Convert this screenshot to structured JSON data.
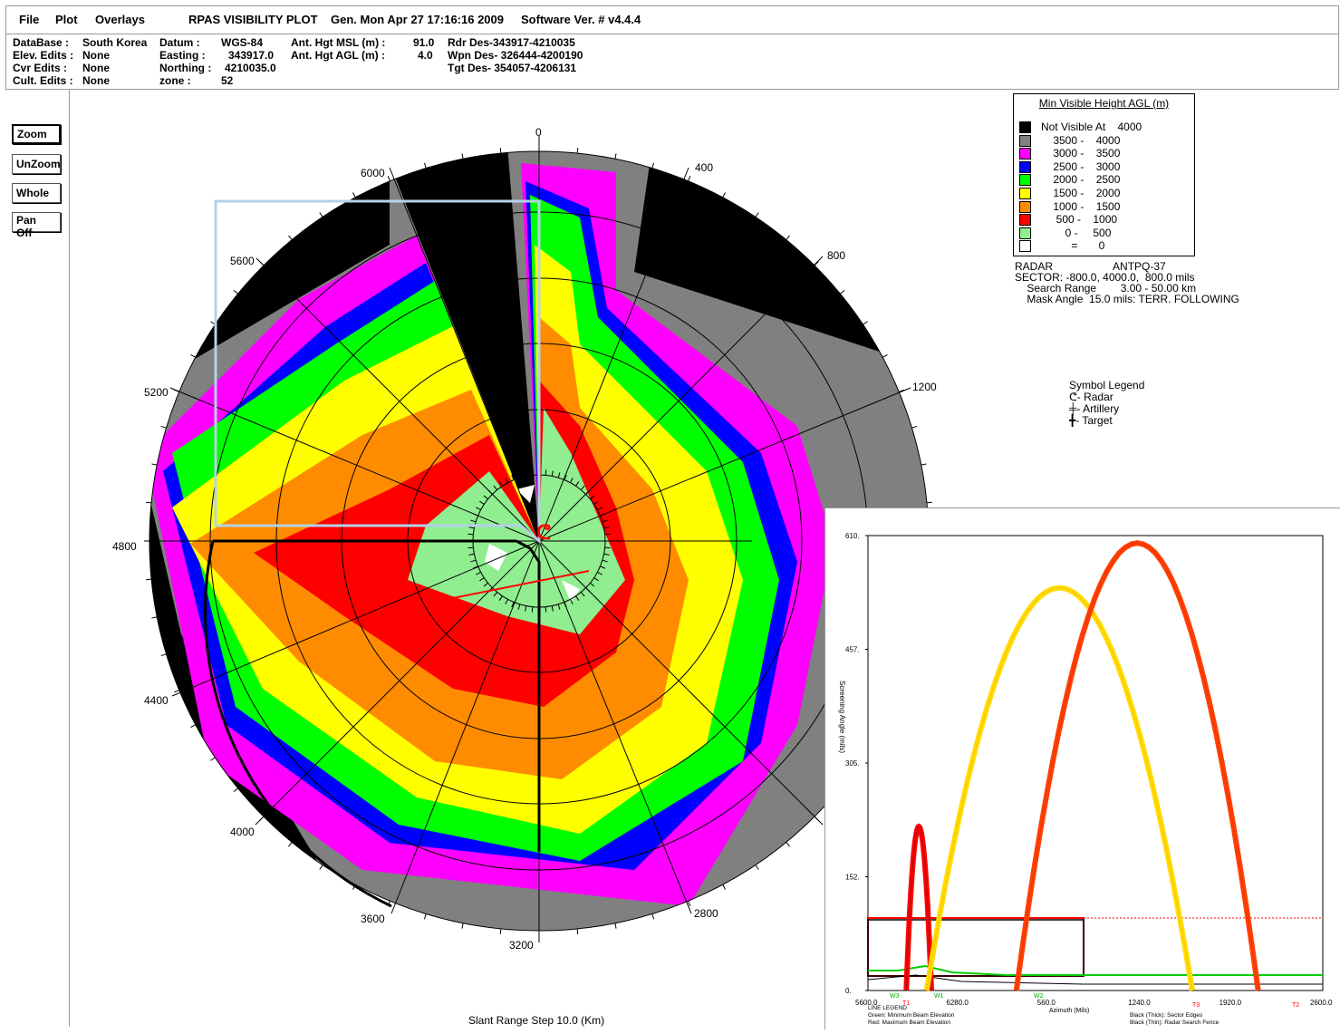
{
  "menu": {
    "file": "File",
    "plot": "Plot",
    "overlays": "Overlays",
    "title": "RPAS VISIBILITY PLOT",
    "generated": "Gen. Mon Apr 27 17:16:16 2009",
    "software": "Software Ver. # v4.4.4"
  },
  "info": {
    "database_label": "DataBase :",
    "database_value": "South Korea",
    "elev_label": "Elev. Edits :",
    "elev_value": "None",
    "cvr_label": "Cvr Edits :",
    "cvr_value": "None",
    "cult_label": "Cult. Edits :",
    "cult_value": "None",
    "datum_label": "Datum :",
    "datum_value": "WGS-84",
    "easting_label": "Easting :",
    "easting_value": "343917.0",
    "northing_label": "Northing :",
    "northing_value": "4210035.0",
    "zone_label": "zone :",
    "zone_value": "52",
    "msl_label": "Ant. Hgt MSL (m) :",
    "msl_value": "91.0",
    "agl_label": "Ant. Hgt AGL (m) :",
    "agl_value": "4.0",
    "rdr_des": "Rdr Des-343917-4210035",
    "wpn_des": "Wpn Des- 326444-4200190",
    "tgt_des": "Tgt Des- 354057-4206131"
  },
  "toolbar": {
    "zoom": "Zoom",
    "unzoom": "UnZoom",
    "whole": "Whole",
    "pan": "Pan Off"
  },
  "polar": {
    "labels": [
      "0",
      "400",
      "800",
      "1200",
      "2800",
      "3200",
      "3600",
      "4000",
      "4400",
      "4800",
      "5200",
      "5600",
      "6000"
    ]
  },
  "legend": {
    "title": "Min Visible Height AGL  (m)",
    "rows": [
      {
        "color": "#000000",
        "text": "Not Visible At    4000"
      },
      {
        "color": "#808080",
        "text": "    3500 -    4000"
      },
      {
        "color": "#ff00ff",
        "text": "    3000 -    3500"
      },
      {
        "color": "#0000ff",
        "text": "    2500 -    3000"
      },
      {
        "color": "#00ff00",
        "text": "    2000 -    2500"
      },
      {
        "color": "#ffff00",
        "text": "    1500 -    2000"
      },
      {
        "color": "#ff8c00",
        "text": "    1000 -    1500"
      },
      {
        "color": "#ff0000",
        "text": "     500 -    1000"
      },
      {
        "color": "#90ee90",
        "text": "        0 -     500"
      },
      {
        "color": "#ffffff",
        "text": "          =       0"
      }
    ]
  },
  "radar": {
    "line1": "RADAR                    ANTPQ-37",
    "line2": "SECTOR: -800.0, 4000.0,  800.0 mils",
    "line3": "    Search Range        3.00 - 50.00 km",
    "line4": "    Mask Angle  15.0 mils: TERR. FOLLOWING"
  },
  "symbols": {
    "title": "Symbol Legend",
    "radar": "- Radar",
    "artillery": "- Artillery",
    "target": "- Target"
  },
  "footer": "Slant Range Step 10.0 (Km)",
  "inset": {
    "y_ticks": [
      "610.",
      "457.",
      "305.",
      "152.",
      "0."
    ],
    "x_ticks": [
      "5600.0",
      "6280.0",
      "560.0",
      "1240.0",
      "1920.0",
      "2600.0"
    ],
    "ylabel": "Screening Angle (mils)",
    "xlabel": "Azimuth (Mils)",
    "markers_green": [
      "W3",
      "W1",
      "W2"
    ],
    "markers_red": [
      "T1",
      "T3",
      "T2"
    ],
    "line_legend": "LINE LEGEND",
    "green_desc": "Green: Minimum Beam Elevation",
    "red_desc": "Red: Maximum Beam Elevation",
    "black_thick": "Black (Thick): Sector Edges",
    "black_thin": "Black (Thin): Radar Search Fence"
  },
  "chart_data": {
    "type": "line",
    "xlabel": "Azimuth (Mils)",
    "ylabel": "Screening Angle (mils)",
    "x_ticks": [
      "5600.0",
      "6280.0",
      "560.0",
      "1240.0",
      "1920.0",
      "2600.0"
    ],
    "ylim": [
      0,
      610
    ],
    "series": [
      {
        "x": [
          5920,
          6010,
          6080,
          6130
        ],
        "y": [
          0,
          220,
          220,
          0
        ]
      },
      {
        "x": [
          6090,
          6300,
          800,
          1800,
          1910
        ],
        "y": [
          0,
          300,
          540,
          130,
          0
        ]
      },
      {
        "x": [
          440,
          1000,
          1450,
          1980,
          2460
        ],
        "y": [
          0,
          420,
          600,
          420,
          0
        ]
      }
    ]
  }
}
